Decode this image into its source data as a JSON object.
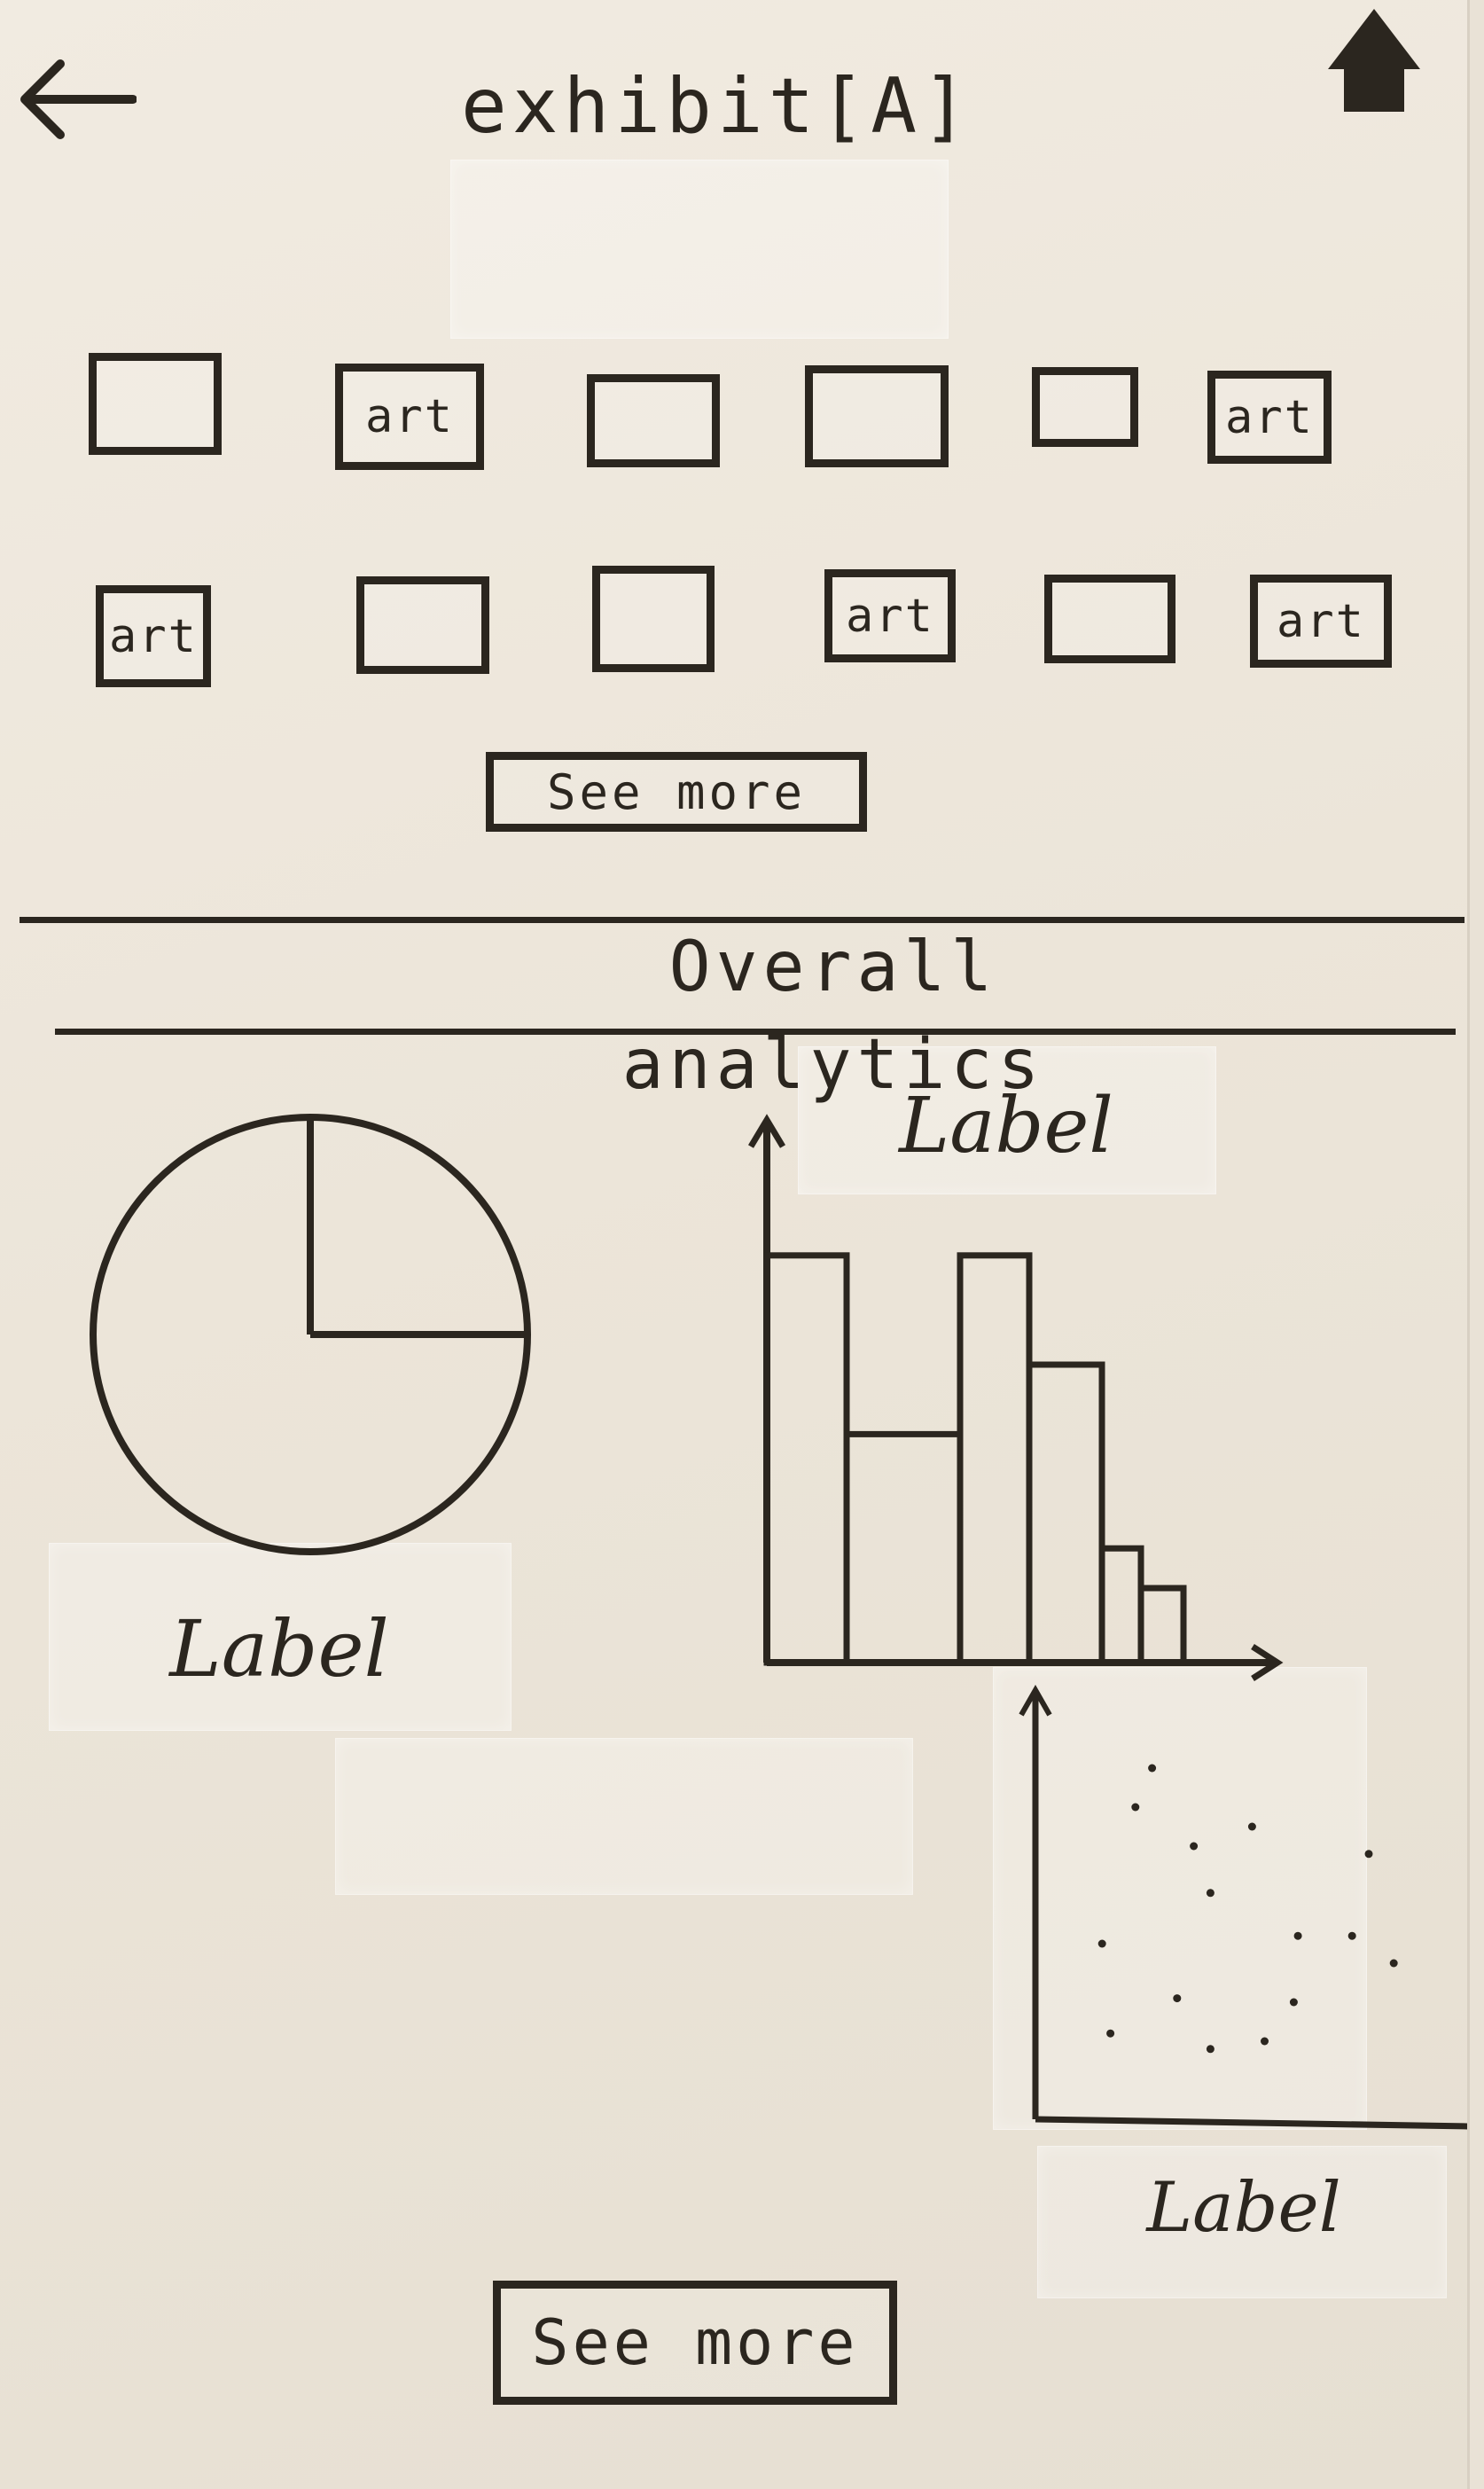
{
  "header": {
    "title": "exhibit[A]",
    "back_icon": "arrow-left-icon",
    "home_icon": "home-icon"
  },
  "artworks": {
    "items": [
      {
        "label": ""
      },
      {
        "label": "art"
      },
      {
        "label": ""
      },
      {
        "label": ""
      },
      {
        "label": ""
      },
      {
        "label": "art"
      },
      {
        "label": "art"
      },
      {
        "label": ""
      },
      {
        "label": ""
      },
      {
        "label": "art"
      },
      {
        "label": ""
      },
      {
        "label": "art"
      }
    ]
  },
  "actions": {
    "see_more_top": "See more",
    "see_more_bottom": "See more"
  },
  "analytics": {
    "title": "Overall analytics"
  },
  "chart_data": [
    {
      "type": "pie",
      "values": [
        25,
        75
      ],
      "title": "Label"
    },
    {
      "type": "bar",
      "categories": [
        "",
        "",
        "",
        "",
        "",
        ""
      ],
      "values": [
        82,
        46,
        82,
        60,
        23,
        15
      ],
      "title": "Label",
      "ylim": [
        0,
        100
      ]
    },
    {
      "type": "scatter",
      "x": [
        28,
        24,
        52,
        38,
        42,
        80,
        63,
        76,
        16,
        86,
        34,
        62,
        18,
        55,
        42
      ],
      "y": [
        90,
        80,
        75,
        70,
        58,
        68,
        47,
        47,
        45,
        40,
        31,
        30,
        22,
        20,
        18
      ],
      "title": "Label",
      "xlim": [
        0,
        100
      ],
      "ylim": [
        0,
        100
      ]
    }
  ]
}
